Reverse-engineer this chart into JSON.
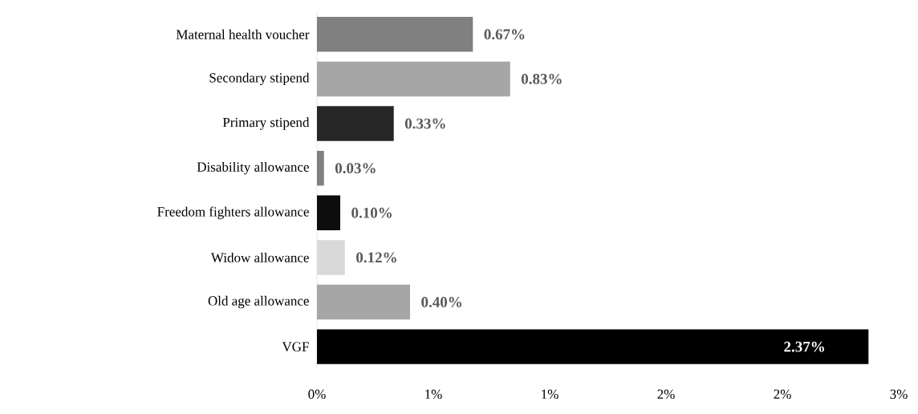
{
  "chart_data": {
    "type": "bar",
    "orientation": "horizontal",
    "categories": [
      "Maternal health voucher",
      "Secondary stipend",
      "Primary stipend",
      "Disability allowance",
      "Freedom fighters allowance",
      "Widow allowance",
      "Old age allowance",
      "VGF"
    ],
    "values": [
      0.67,
      0.83,
      0.33,
      0.03,
      0.1,
      0.12,
      0.4,
      2.37
    ],
    "value_labels": [
      "0.67%",
      "0.83%",
      "0.33%",
      "0.03%",
      "0.10%",
      "0.12%",
      "0.40%",
      "2.37%"
    ],
    "colors": [
      "#808080",
      "#a6a6a6",
      "#262626",
      "#808080",
      "#0d0d0d",
      "#d9d9d9",
      "#a6a6a6",
      "#000000"
    ],
    "xlim": [
      0,
      2.5
    ],
    "xticks": [
      {
        "value": 0,
        "label": "0%"
      },
      {
        "value": 0.5,
        "label": "1%"
      },
      {
        "value": 1,
        "label": "1%"
      },
      {
        "value": 1.5,
        "label": "2%"
      },
      {
        "value": 2,
        "label": "2%"
      },
      {
        "value": 2.5,
        "label": "3%"
      }
    ]
  }
}
